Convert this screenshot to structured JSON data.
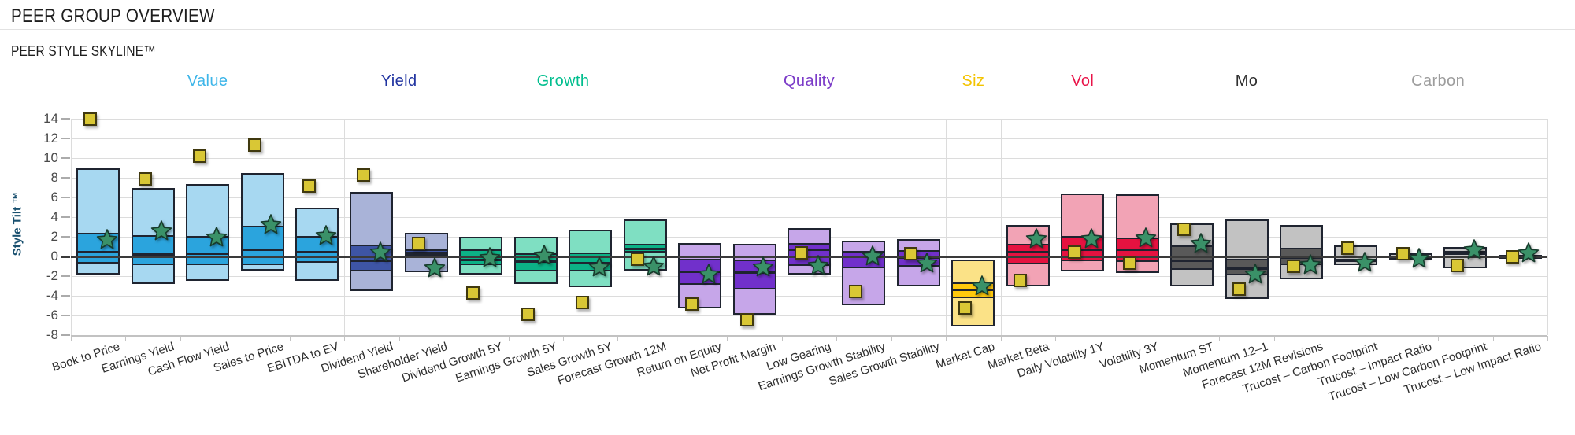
{
  "page": {
    "title": "PEER GROUP OVERVIEW",
    "subtitle": "PEER STYLE SKYLINE™"
  },
  "chart_data": {
    "type": "box-skyline",
    "description": "Peer style skyline: for each style factor an outer box (peer range), inner box (peer core range), median line, green star marker and gold square marker, measured in Style Tilt units.",
    "y_axis": {
      "title": "Style Tilt ™",
      "min": -8,
      "max": 14,
      "tick_step": 2,
      "ticks": [
        14,
        12,
        10,
        8,
        6,
        4,
        2,
        0,
        -2,
        -4,
        -6,
        -8
      ]
    },
    "grid": true,
    "box_border": "#1f2430",
    "markers": {
      "star_fill": "#3a9168",
      "star_stroke": "#173b2c",
      "square_fill": "#d9c735",
      "square_stroke": "#40390f"
    },
    "groups": [
      {
        "label": "Value",
        "color": "#3fb6e9",
        "light": "#a7d8f1",
        "dark": "#2ba4dd",
        "factors": [
          {
            "label": "Book to Price",
            "range_low": -1.8,
            "range_high": 9.0,
            "core_low": -0.7,
            "core_high": 2.4,
            "median": 0.45,
            "star": 1.7,
            "square": 14.0
          },
          {
            "label": "Earnings Yield",
            "range_low": -2.8,
            "range_high": 7.0,
            "core_low": -0.85,
            "core_high": 2.2,
            "median": 0.2,
            "star": 2.6,
            "square": 7.9
          },
          {
            "label": "Cash Flow Yield",
            "range_low": -2.5,
            "range_high": 7.4,
            "core_low": -0.85,
            "core_high": 2.1,
            "median": 0.25,
            "star": 1.95,
            "square": 10.2
          },
          {
            "label": "Sales to Price",
            "range_low": -1.4,
            "range_high": 8.5,
            "core_low": -0.9,
            "core_high": 3.1,
            "median": 0.7,
            "star": 3.2,
            "square": 11.3
          },
          {
            "label": "EBITDA to EV",
            "range_low": -2.5,
            "range_high": 5.0,
            "core_low": -0.6,
            "core_high": 2.1,
            "median": 0.45,
            "star": 2.1,
            "square": 7.2
          }
        ]
      },
      {
        "label": "Yield",
        "color": "#2033a0",
        "light": "#a9b3d8",
        "dark": "#3e55a5",
        "factors": [
          {
            "label": "Dividend Yield",
            "range_low": -3.5,
            "range_high": 6.6,
            "core_low": -1.5,
            "core_high": 1.2,
            "median": -0.45,
            "star": 0.4,
            "square": 8.3
          },
          {
            "label": "Shareholder Yield",
            "range_low": -1.6,
            "range_high": 2.4,
            "core_low": 0.1,
            "core_high": 0.75,
            "median": 0.4,
            "star": -1.2,
            "square": 1.3
          }
        ]
      },
      {
        "label": "Growth",
        "color": "#00be8e",
        "light": "#7fdfc2",
        "dark": "#0cb186",
        "factors": [
          {
            "label": "Dividend Growth 5Y",
            "range_low": -1.85,
            "range_high": 2.0,
            "core_low": -0.9,
            "core_high": 0.7,
            "median": -0.35,
            "star": -0.15,
            "square": -3.7
          },
          {
            "label": "Earnings Growth 5Y",
            "range_low": -2.8,
            "range_high": 2.0,
            "core_low": -1.5,
            "core_high": 0.3,
            "median": -0.5,
            "star": 0.05,
            "square": -5.9
          },
          {
            "label": "Sales Growth 5Y",
            "range_low": -3.1,
            "range_high": 2.7,
            "core_low": -1.5,
            "core_high": 0.4,
            "median": -0.7,
            "star": -1.1,
            "square": -4.7
          },
          {
            "label": "Forecast Growth 12M",
            "range_low": -1.4,
            "range_high": 3.8,
            "core_low": 0.4,
            "core_high": 1.3,
            "median": 0.8,
            "star": -1.0,
            "square": -0.3
          }
        ]
      },
      {
        "label": "Quality",
        "color": "#7b3bc8",
        "light": "#c6a6e9",
        "dark": "#7130cb",
        "factors": [
          {
            "label": "Return on Equity",
            "range_low": -5.3,
            "range_high": 1.4,
            "core_low": -2.9,
            "core_high": -0.2,
            "median": -1.55,
            "star": -1.8,
            "square": -4.85
          },
          {
            "label": "Net Profit Margin",
            "range_low": -5.9,
            "range_high": 1.25,
            "core_low": -3.35,
            "core_high": -0.35,
            "median": -1.6,
            "star": -1.1,
            "square": -6.4
          },
          {
            "label": "Low Gearing",
            "range_low": -1.8,
            "range_high": 2.9,
            "core_low": -0.95,
            "core_high": 1.4,
            "median": 0.7,
            "star": -0.95,
            "square": 0.4
          },
          {
            "label": "Earnings Growth Stability",
            "range_low": -4.95,
            "range_high": 1.6,
            "core_low": -1.2,
            "core_high": 0.6,
            "median": -0.05,
            "star": 0.0,
            "square": -3.55
          },
          {
            "label": "Sales Growth Stability",
            "range_low": -3.0,
            "range_high": 1.75,
            "core_low": -1.0,
            "core_high": 0.65,
            "median": -0.15,
            "star": -0.75,
            "square": 0.25
          }
        ]
      },
      {
        "label": "Siz",
        "color": "#f3c300",
        "light": "#fbe287",
        "dark": "#ffc90d",
        "factors": [
          {
            "label": "Market Cap",
            "range_low": -7.1,
            "range_high": -0.3,
            "core_low": -4.2,
            "core_high": -2.6,
            "median": -3.4,
            "star": -3.05,
            "square": -5.2
          }
        ]
      },
      {
        "label": "Vol",
        "color": "#e91348",
        "light": "#f2a3b5",
        "dark": "#e51240",
        "factors": [
          {
            "label": "Market Beta",
            "range_low": -3.0,
            "range_high": 3.2,
            "core_low": -0.8,
            "core_high": 1.25,
            "median": 0.45,
            "star": 1.75,
            "square": -2.4
          },
          {
            "label": "Daily Volatility 1Y",
            "range_low": -1.5,
            "range_high": 6.4,
            "core_low": -0.45,
            "core_high": 2.1,
            "median": 0.7,
            "star": 1.8,
            "square": 0.45
          },
          {
            "label": "Volatility 3Y",
            "range_low": -1.7,
            "range_high": 6.3,
            "core_low": -0.55,
            "core_high": 1.95,
            "median": 0.7,
            "star": 1.85,
            "square": -0.65
          }
        ]
      },
      {
        "label": "Mo",
        "color": "#303030",
        "light": "#c2c2c2",
        "dark": "#595959",
        "factors": [
          {
            "label": "Momentum ST",
            "range_low": -3.0,
            "range_high": 3.4,
            "core_low": -1.35,
            "core_high": 1.15,
            "median": -0.4,
            "star": 1.25,
            "square": 2.75
          },
          {
            "label": "Momentum 12–1",
            "range_low": -4.3,
            "range_high": 3.8,
            "core_low": -1.95,
            "core_high": -0.2,
            "median": -1.25,
            "star": -1.8,
            "square": -3.35
          },
          {
            "label": "Forecast 12M Revisions",
            "range_low": -2.35,
            "range_high": 3.2,
            "core_low": -0.9,
            "core_high": 0.85,
            "median": -0.1,
            "star": -0.9,
            "square": -1.0
          }
        ]
      },
      {
        "label": "Carbon",
        "color": "#9d9d9d",
        "light": "#c6c6c6",
        "dark": "#808080",
        "factors": [
          {
            "label": "Trucost – Carbon Footprint",
            "range_low": -0.85,
            "range_high": 1.15,
            "core_low": -0.5,
            "core_high": -0.2,
            "median": -0.35,
            "star": -0.6,
            "square": 0.85
          },
          {
            "label": "Trucost – Impact Ratio",
            "range_low": -0.3,
            "range_high": 0.3,
            "core_low": -0.15,
            "core_high": 0.05,
            "median": -0.05,
            "star": -0.2,
            "square": 0.25
          },
          {
            "label": "Trucost – Low Carbon Footprint",
            "range_low": -1.2,
            "range_high": 1.0,
            "core_low": 0.2,
            "core_high": 0.6,
            "median": 0.4,
            "star": 0.65,
            "square": -0.95
          },
          {
            "label": "Trucost – Low Impact Ratio",
            "range_low": -0.2,
            "range_high": 0.2,
            "core_low": -0.1,
            "core_high": 0.05,
            "median": 0.0,
            "star": 0.35,
            "square": 0.0
          }
        ]
      }
    ]
  }
}
